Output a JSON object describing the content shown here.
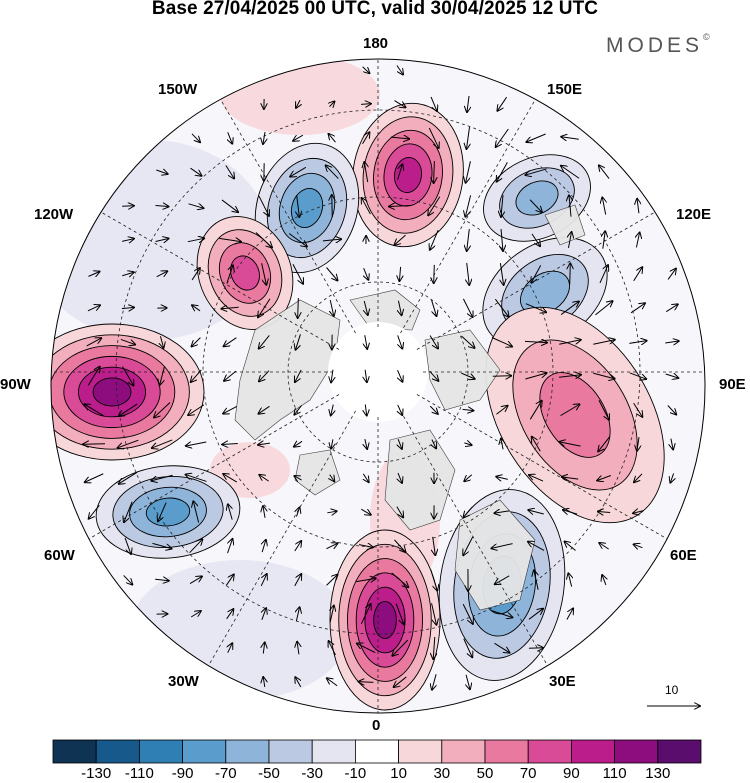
{
  "title": "Base 27/04/2025 00 UTC, valid 30/04/2025 12 UTC",
  "brand": {
    "name": "MODES",
    "mark": "©"
  },
  "longitude_labels": {
    "n180": "180",
    "e150": "150E",
    "e120": "120E",
    "e90": "90E",
    "e60": "60E",
    "e30": "30E",
    "s0": "0",
    "w30": "30W",
    "w60": "60W",
    "w90": "90W",
    "w120": "120W",
    "w150": "150W"
  },
  "reference_vector": {
    "label": "10"
  },
  "colorbar": {
    "labels": [
      "-130",
      "-110",
      "-90",
      "-70",
      "-50",
      "-30",
      "-10",
      "10",
      "30",
      "50",
      "70",
      "90",
      "110",
      "130"
    ],
    "colors": [
      "#0f3352",
      "#17598a",
      "#2f7fb5",
      "#5a9ccb",
      "#8fb4d9",
      "#bcc9e3",
      "#e4e5f1",
      "#ffffff",
      "#f8d7da",
      "#f2aebc",
      "#e9799f",
      "#d94a97",
      "#bb1d8b",
      "#8e0d7e",
      "#5b0d6e"
    ]
  },
  "map": {
    "projection": "north-polar-stereographic",
    "field": "anomaly",
    "anomalies": [
      {
        "name": "positive-anomaly-pacific",
        "value": 90
      },
      {
        "name": "negative-anomaly-bering",
        "value": -70
      },
      {
        "name": "positive-anomaly-alaska",
        "value": 70
      },
      {
        "name": "negative-anomaly-east-siberia",
        "value": -50
      },
      {
        "name": "positive-anomaly-central-siberia",
        "value": 50
      },
      {
        "name": "negative-anomaly-black-sea",
        "value": -70
      },
      {
        "name": "positive-anomaly-europe",
        "value": 110
      },
      {
        "name": "negative-anomaly-atlantic",
        "value": -70
      },
      {
        "name": "positive-anomaly-canada",
        "value": 110
      }
    ]
  }
}
